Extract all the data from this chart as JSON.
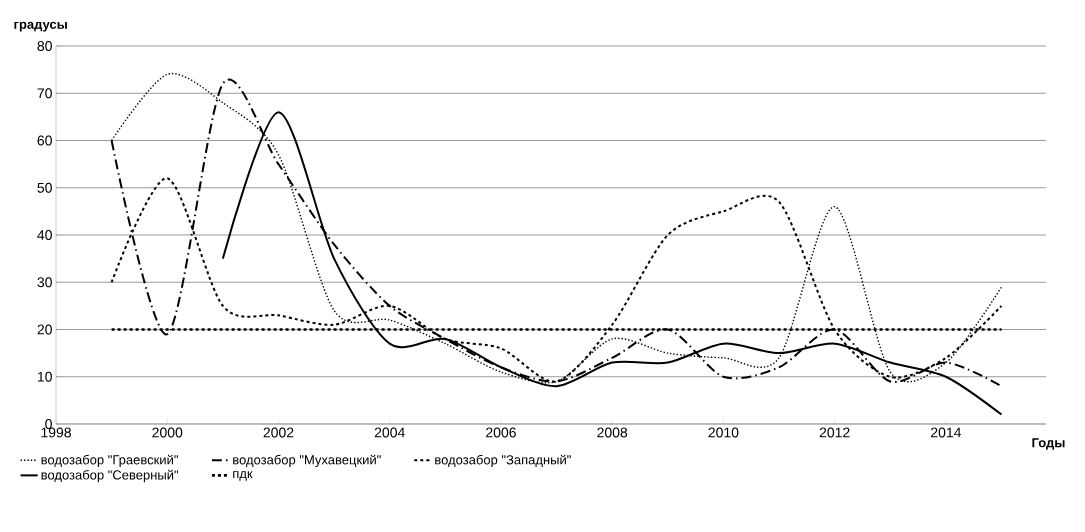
{
  "chart_data": {
    "type": "line",
    "xlabel": "Годы",
    "ylabel": "градусы",
    "x": [
      1999,
      2000,
      2001,
      2002,
      2003,
      2004,
      2005,
      2006,
      2007,
      2008,
      2009,
      2010,
      2011,
      2012,
      2013,
      2014,
      2015
    ],
    "series": [
      {
        "name": "водозабор \"Граевский\"",
        "color": "#000000",
        "line_style": "dotted",
        "values": [
          60,
          74,
          68,
          57,
          24,
          22,
          17,
          11,
          9,
          18,
          15,
          14,
          14,
          46,
          11,
          13,
          29
        ]
      },
      {
        "name": "водозабор \"Мухавецкий\"",
        "color": "#000000",
        "line_style": "dashdot",
        "values": [
          60,
          19,
          72,
          55,
          38,
          25,
          18,
          12,
          9,
          14,
          20,
          10,
          12,
          20,
          9,
          13,
          8
        ]
      },
      {
        "name": "водозабор \"Западный\"",
        "color": "#000000",
        "line_style": "dashed",
        "values": [
          30,
          52,
          25,
          23,
          21,
          25,
          18,
          16,
          9,
          21,
          40,
          45,
          47,
          20,
          10,
          14,
          25
        ]
      },
      {
        "name": "водозабор \"Северный\"",
        "color": "#000000",
        "line_style": "solid",
        "values": [
          null,
          null,
          35,
          66,
          35,
          17,
          18,
          12,
          8,
          13,
          13,
          17,
          15,
          17,
          13,
          10,
          2
        ]
      },
      {
        "name": "пдк",
        "color": "#000000",
        "line_style": "dashed",
        "values": [
          20,
          20,
          20,
          20,
          20,
          20,
          20,
          20,
          20,
          20,
          20,
          20,
          20,
          20,
          20,
          20,
          20
        ]
      }
    ],
    "xlim": [
      1998,
      2015.8
    ],
    "xticks": [
      1998,
      2000,
      2002,
      2004,
      2006,
      2008,
      2010,
      2012,
      2014
    ],
    "ylim": [
      0,
      80
    ],
    "yticks": [
      0,
      10,
      20,
      30,
      40,
      50,
      60,
      70,
      80
    ],
    "grid": "y",
    "legend": "bottom",
    "marker": "none"
  }
}
